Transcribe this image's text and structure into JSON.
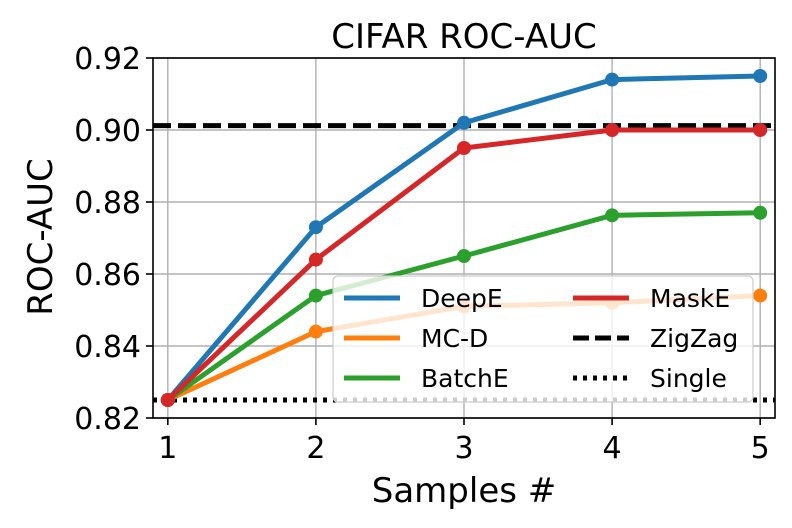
{
  "chart_data": {
    "type": "line",
    "title": "CIFAR ROC-AUC",
    "xlabel": "Samples #",
    "ylabel": "ROC-AUC",
    "xlim": [
      0.9,
      5.1
    ],
    "ylim": [
      0.82,
      0.92
    ],
    "x": [
      1,
      2,
      3,
      4,
      5
    ],
    "xticks": [
      1,
      2,
      3,
      4,
      5
    ],
    "xtick_labels": [
      "1",
      "2",
      "3",
      "4",
      "5"
    ],
    "yticks": [
      0.82,
      0.84,
      0.86,
      0.88,
      0.9,
      0.92
    ],
    "ytick_labels": [
      "0.82",
      "0.84",
      "0.86",
      "0.88",
      "0.90",
      "0.92"
    ],
    "grid": true,
    "legend_position": "lower-right",
    "series": [
      {
        "name": "DeepE",
        "color": "#1f77b4",
        "style": "solid-markers",
        "values": [
          0.825,
          0.873,
          0.902,
          0.914,
          0.915
        ]
      },
      {
        "name": "MC-D",
        "color": "#ff7f0e",
        "style": "solid-markers",
        "values": [
          0.825,
          0.844,
          0.851,
          0.852,
          0.854
        ]
      },
      {
        "name": "BatchE",
        "color": "#2ca02c",
        "style": "solid-markers",
        "values": [
          0.825,
          0.854,
          0.865,
          0.8763,
          0.877
        ]
      },
      {
        "name": "MaskE",
        "color": "#d62728",
        "style": "solid-markers",
        "values": [
          0.825,
          0.864,
          0.895,
          0.9,
          0.9
        ]
      }
    ],
    "reference_lines": [
      {
        "name": "ZigZag",
        "color": "#000000",
        "style": "dashed",
        "value": 0.9012
      },
      {
        "name": "Single",
        "color": "#000000",
        "style": "dotted",
        "value": 0.825
      }
    ],
    "legend_columns": [
      [
        "DeepE",
        "MC-D",
        "BatchE"
      ],
      [
        "MaskE",
        "ZigZag",
        "Single"
      ]
    ]
  }
}
